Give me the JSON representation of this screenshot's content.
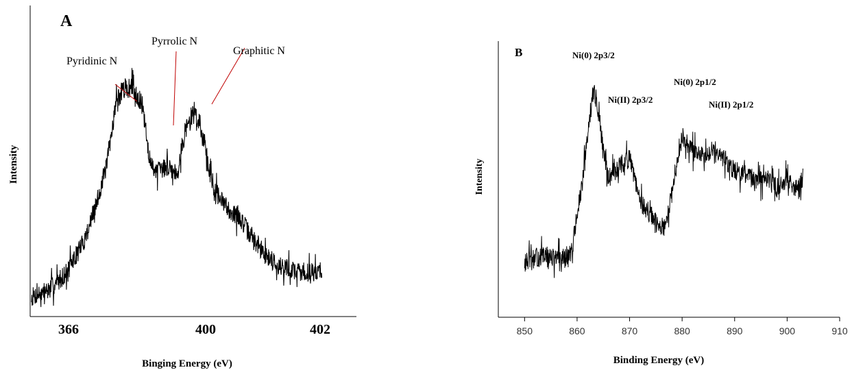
{
  "chart_data": [
    {
      "panel": "A",
      "type": "line",
      "xlabel": "Binging Energy (eV)",
      "ylabel": "Intensity",
      "x_tick_labels": [
        "366",
        "400",
        "402"
      ],
      "grid": false,
      "annotations": [
        "Pyridinic N",
        "Pyrrolic N",
        "Graphitic N"
      ],
      "series": [
        {
          "x": [
            0.0,
            0.06,
            0.12,
            0.18,
            0.22,
            0.26,
            0.29,
            0.32,
            0.35,
            0.38,
            0.41,
            0.44,
            0.47,
            0.5,
            0.53,
            0.56,
            0.59,
            0.62,
            0.65,
            0.68,
            0.72,
            0.76,
            0.8,
            0.85,
            0.9,
            0.95,
            1.0
          ],
          "y": [
            0.06,
            0.09,
            0.16,
            0.29,
            0.43,
            0.61,
            0.86,
            0.92,
            0.92,
            0.85,
            0.6,
            0.58,
            0.6,
            0.57,
            0.75,
            0.83,
            0.73,
            0.53,
            0.46,
            0.42,
            0.38,
            0.3,
            0.24,
            0.19,
            0.17,
            0.16,
            0.17
          ],
          "noise": 0.04
        }
      ]
    },
    {
      "panel": "B",
      "type": "line",
      "xlabel": "Binding Energy (eV)",
      "ylabel": "Intensity",
      "xlim": [
        845,
        910
      ],
      "x_ticks": [
        850,
        860,
        870,
        880,
        890,
        900,
        910
      ],
      "grid": false,
      "annotations": [
        "Ni(0) 2p3/2",
        "Ni(II) 2p3/2",
        "Ni(0) 2p1/2",
        "Ni(II) 2p1/2"
      ],
      "series": [
        {
          "x": [
            850,
            852,
            854,
            856,
            858,
            859,
            860,
            861,
            862,
            863,
            864,
            865,
            866,
            868,
            870,
            872,
            874,
            876,
            877,
            878,
            879,
            880,
            882,
            884,
            886,
            888,
            890,
            892,
            894,
            896,
            898,
            900,
            902,
            903
          ],
          "y": [
            0.2,
            0.22,
            0.23,
            0.22,
            0.22,
            0.25,
            0.4,
            0.52,
            0.72,
            0.92,
            0.83,
            0.66,
            0.55,
            0.6,
            0.63,
            0.45,
            0.4,
            0.33,
            0.36,
            0.48,
            0.62,
            0.72,
            0.66,
            0.64,
            0.68,
            0.63,
            0.58,
            0.57,
            0.53,
            0.55,
            0.51,
            0.55,
            0.5,
            0.55
          ],
          "noise": 0.04
        }
      ]
    }
  ]
}
